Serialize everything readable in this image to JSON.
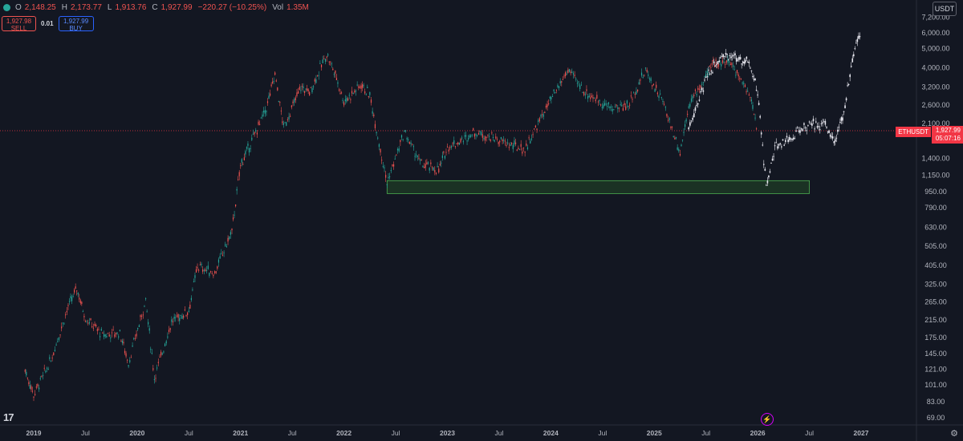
{
  "legend": {
    "open_label": "O",
    "open": "2,148.25",
    "high_label": "H",
    "high": "2,173.77",
    "low_label": "L",
    "low": "1,913.76",
    "close_label": "C",
    "close": "1,927.99",
    "change": "−220.27 (−10.25%)",
    "vol_label": "Vol",
    "vol": "1.35M"
  },
  "trade": {
    "sell_price": "1,927.98",
    "sell_label": "SELL",
    "spread": "0.01",
    "buy_price": "1,927.99",
    "buy_label": "BUY"
  },
  "currency": "USDT",
  "price_tag": {
    "symbol": "ETHUSDT",
    "price": "1,927.99",
    "countdown": "05:07:16"
  },
  "colors": {
    "up": "#26a69a",
    "down": "#ef5350",
    "projection": "#e8e8f0",
    "zone_fill": "#1e3a25",
    "zone_stroke": "#4caf50",
    "background": "#131722"
  },
  "icons": {
    "logo": "tradingview-logo-icon",
    "bolt": "lightning-icon",
    "settings": "gear-icon"
  },
  "chart_data": {
    "type": "line",
    "y_scale": "log",
    "y_ticks": [
      "7,200.00",
      "6,000.00",
      "5,000.00",
      "4,000.00",
      "3,200.00",
      "2,600.00",
      "2,100.00",
      "1,400.00",
      "1,150.00",
      "950.00",
      "790.00",
      "630.00",
      "505.00",
      "405.00",
      "325.00",
      "265.00",
      "215.00",
      "175.00",
      "145.00",
      "121.00",
      "101.00",
      "83.00",
      "69.00"
    ],
    "x_ticks": [
      "2019",
      "Jul",
      "2020",
      "Jul",
      "2021",
      "Jul",
      "2022",
      "Jul",
      "2023",
      "Jul",
      "2024",
      "Jul",
      "2025",
      "Jul",
      "2026",
      "Jul",
      "2027"
    ],
    "series": [
      {
        "x": [
          "2018-12",
          "2019-01",
          "2019-03",
          "2019-05",
          "2019-06",
          "2019-07",
          "2019-09",
          "2019-11",
          "2019-12",
          "2020-02",
          "2020-03",
          "2020-05",
          "2020-07",
          "2020-08",
          "2020-10",
          "2020-12",
          "2021-01",
          "2021-02",
          "2021-04",
          "2021-05",
          "2021-06",
          "2021-08",
          "2021-09",
          "2021-11",
          "2021-12",
          "2022-01",
          "2022-03",
          "2022-04",
          "2022-06",
          "2022-08",
          "2022-10",
          "2022-12",
          "2023-01",
          "2023-03",
          "2023-04",
          "2023-06",
          "2023-08",
          "2023-10",
          "2023-12",
          "2024-03",
          "2024-05",
          "2024-08",
          "2024-10",
          "2024-12",
          "2025-02",
          "2025-04",
          "2025-05",
          "2025-07",
          "2025-08",
          "2025-10",
          "2025-12",
          "2026-01"
        ],
        "values": [
          120,
          90,
          135,
          250,
          310,
          220,
          180,
          185,
          130,
          270,
          110,
          210,
          240,
          400,
          370,
          600,
          1300,
          1600,
          2500,
          3700,
          2000,
          3200,
          3000,
          4700,
          3700,
          2700,
          3300,
          2900,
          1050,
          1900,
          1300,
          1220,
          1600,
          1750,
          1900,
          1800,
          1650,
          1550,
          2300,
          3900,
          3000,
          2500,
          2600,
          3900,
          2700,
          1500,
          2600,
          3600,
          4300,
          4200,
          3000,
          1927.99
        ]
      },
      {
        "x": [
          "2025-05",
          "2025-07",
          "2025-09",
          "2025-11",
          "2025-12",
          "2026-01",
          "2026-02",
          "2026-03",
          "2026-05",
          "2026-07",
          "2026-09",
          "2026-10",
          "2026-11",
          "2026-12",
          "2027-01"
        ],
        "values": [
          2000,
          3500,
          4800,
          4300,
          4400,
          3000,
          1000,
          1600,
          1800,
          2100,
          2050,
          1700,
          2400,
          4500,
          6100
        ]
      }
    ],
    "annotations": [
      {
        "type": "zone",
        "from_date": "2022-06",
        "to_date": "2026-07",
        "low": 930,
        "high": 1080
      }
    ]
  }
}
